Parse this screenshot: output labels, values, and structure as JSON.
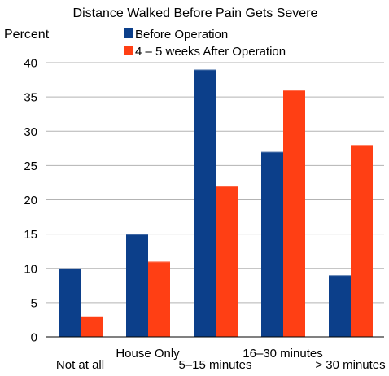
{
  "chart_data": {
    "type": "bar",
    "title": "Distance Walked Before Pain Gets Severe",
    "ylabel": "Percent",
    "xlabel": "",
    "categories": [
      "Not at all",
      "House Only",
      "5–15 minutes",
      "16–30 minutes",
      "> 30 minutes"
    ],
    "series": [
      {
        "name": "Before Operation",
        "color": "#0c3f8a",
        "values": [
          10,
          15,
          39,
          27,
          9
        ]
      },
      {
        "name": "4 – 5 weeks After Operation",
        "color": "#ff3f14",
        "values": [
          3,
          11,
          22,
          36,
          28
        ]
      }
    ],
    "ylim": [
      0,
      40
    ],
    "yticks": [
      0,
      5,
      10,
      15,
      20,
      25,
      30,
      35,
      40
    ],
    "grid": true,
    "legend_position": "top"
  }
}
